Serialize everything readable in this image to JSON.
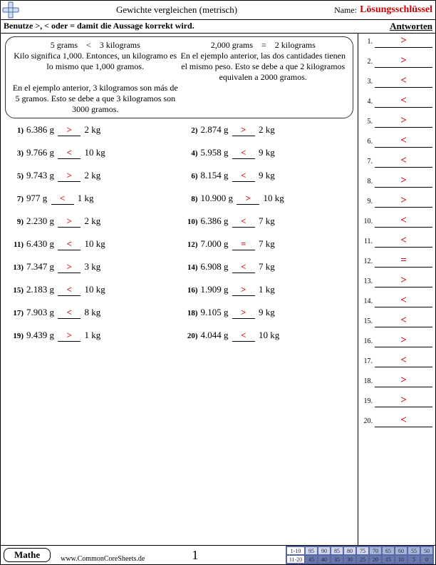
{
  "header": {
    "title": "Gewichte vergleichen (metrisch)",
    "name_label": "Name:",
    "answer_key": "Lösungsschlüssel"
  },
  "instruction": "Benutze >, < oder = damit die Aussage korrekt wird.",
  "answers_header": "Antworten",
  "example": {
    "row1_left": "5 grams    <    3 kilograms",
    "row1_right": "2,000 grams    =    2 kilograms",
    "row2_left": "Kilo significa 1,000. Entonces, un kilogramo es lo mismo que 1,000 gramos.",
    "row3_left": "En el ejemplo anterior, 3 kilogramos son más de 5 gramos. Esto se debe a que 3 kilogramos son 3000 gramos.",
    "row2_right": "En el ejemplo anterior, las dos cantidades tienen el mismo peso. Esto se debe a que 2 kilogramos equivalen a 2000 gramos."
  },
  "problems": [
    {
      "n": "1)",
      "left": "6.386 g",
      "ans": ">",
      "right": "2 kg"
    },
    {
      "n": "2)",
      "left": "2.874 g",
      "ans": ">",
      "right": "2 kg"
    },
    {
      "n": "3)",
      "left": "9.766 g",
      "ans": "<",
      "right": "10 kg"
    },
    {
      "n": "4)",
      "left": "5.958 g",
      "ans": "<",
      "right": "9 kg"
    },
    {
      "n": "5)",
      "left": "9.743 g",
      "ans": ">",
      "right": "2 kg"
    },
    {
      "n": "6)",
      "left": "8.154 g",
      "ans": "<",
      "right": "9 kg"
    },
    {
      "n": "7)",
      "left": "977 g",
      "ans": "<",
      "right": "1 kg"
    },
    {
      "n": "8)",
      "left": "10.900 g",
      "ans": ">",
      "right": "10 kg"
    },
    {
      "n": "9)",
      "left": "2.230 g",
      "ans": ">",
      "right": "2 kg"
    },
    {
      "n": "10)",
      "left": "6.386 g",
      "ans": "<",
      "right": "7 kg"
    },
    {
      "n": "11)",
      "left": "6.430 g",
      "ans": "<",
      "right": "10 kg"
    },
    {
      "n": "12)",
      "left": "7.000 g",
      "ans": "=",
      "right": "7 kg"
    },
    {
      "n": "13)",
      "left": "7.347 g",
      "ans": ">",
      "right": "3 kg"
    },
    {
      "n": "14)",
      "left": "6.908 g",
      "ans": "<",
      "right": "7 kg"
    },
    {
      "n": "15)",
      "left": "2.183 g",
      "ans": "<",
      "right": "10 kg"
    },
    {
      "n": "16)",
      "left": "1.909 g",
      "ans": ">",
      "right": "1 kg"
    },
    {
      "n": "17)",
      "left": "7.903 g",
      "ans": "<",
      "right": "8 kg"
    },
    {
      "n": "18)",
      "left": "9.105 g",
      "ans": ">",
      "right": "9 kg"
    },
    {
      "n": "19)",
      "left": "9.439 g",
      "ans": ">",
      "right": "1 kg"
    },
    {
      "n": "20)",
      "left": "4.044 g",
      "ans": "<",
      "right": "10 kg"
    }
  ],
  "answers": [
    ">",
    ">",
    "<",
    "<",
    ">",
    "<",
    "<",
    ">",
    ">",
    "<",
    "<",
    "=",
    ">",
    "<",
    "<",
    ">",
    "<",
    ">",
    ">",
    "<"
  ],
  "footer": {
    "tab": "Mathe",
    "site": "www.CommonCoreSheets.de",
    "page": "1",
    "grid": {
      "r1_label": "1-10",
      "r2_label": "11-20",
      "r1": [
        "95",
        "90",
        "85",
        "80",
        "75",
        "70",
        "65",
        "60",
        "55",
        "50"
      ],
      "r2": [
        "45",
        "40",
        "35",
        "30",
        "25",
        "20",
        "15",
        "10",
        "5",
        "0"
      ]
    }
  },
  "colors": {
    "red": "#c00",
    "border": "#000",
    "grid_border": "#56a",
    "grid_dark": "#6a7aa8"
  }
}
